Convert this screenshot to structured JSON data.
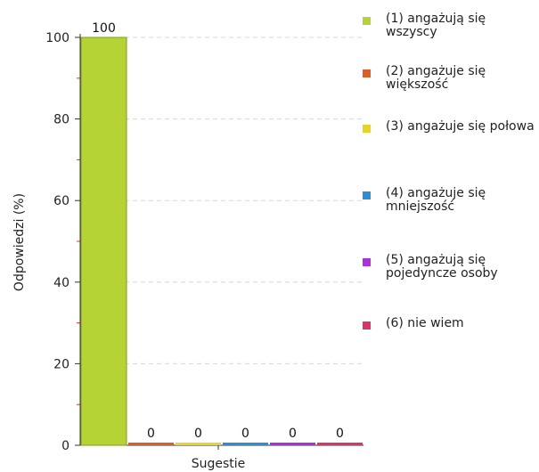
{
  "chart_data": {
    "type": "bar",
    "title": "",
    "xlabel": "Sugestie",
    "ylabel": "Odpowiedzi (%)",
    "ylim": [
      0,
      100
    ],
    "yticks": [
      "0",
      "20",
      "40",
      "60",
      "80",
      "100"
    ],
    "grid": true,
    "legend_position": "right",
    "series": [
      {
        "name": "(1) angażują się wszyscy",
        "value": 100,
        "label": "100",
        "color": "#b5d334"
      },
      {
        "name": "(2) angażuje się większość",
        "value": 0,
        "label": "0",
        "color": "#e05c22"
      },
      {
        "name": "(3) angażuje się połowa",
        "value": 0,
        "label": "0",
        "color": "#e8d51c"
      },
      {
        "name": "(4) angażuje się mniejszość",
        "value": 0,
        "label": "0",
        "color": "#2a8fd8"
      },
      {
        "name": "(5) angażują się pojedyncze osoby",
        "value": 0,
        "label": "0",
        "color": "#b12de0"
      },
      {
        "name": "(6) nie wiem",
        "value": 0,
        "label": "0",
        "color": "#e0306e"
      }
    ]
  }
}
